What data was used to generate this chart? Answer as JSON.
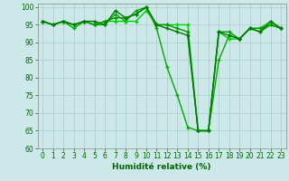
{
  "series": [
    {
      "x": [
        0,
        1,
        2,
        3,
        4,
        5,
        6,
        7,
        8,
        9,
        10,
        11,
        12,
        13,
        14,
        15,
        16,
        17,
        18,
        19,
        20,
        21,
        22,
        23
      ],
      "y": [
        96,
        95,
        96,
        94,
        96,
        95,
        95,
        98,
        96,
        99,
        100,
        94,
        83,
        75,
        66,
        65,
        65,
        85,
        92,
        91,
        94,
        93,
        95,
        94
      ],
      "color": "#00aa00"
    },
    {
      "x": [
        0,
        1,
        2,
        3,
        4,
        5,
        6,
        7,
        8,
        9,
        10,
        11,
        12,
        13,
        14,
        15,
        16,
        17,
        18,
        19,
        20,
        21,
        22,
        23
      ],
      "y": [
        96,
        95,
        96,
        95,
        96,
        95,
        96,
        96,
        96,
        96,
        99,
        95,
        95,
        95,
        95,
        65,
        65,
        93,
        91,
        91,
        94,
        94,
        96,
        94
      ],
      "color": "#00cc00"
    },
    {
      "x": [
        0,
        1,
        2,
        3,
        4,
        5,
        6,
        7,
        8,
        9,
        10,
        11,
        12,
        13,
        14,
        15,
        16,
        17,
        18,
        19,
        20,
        21,
        22,
        23
      ],
      "y": [
        96,
        95,
        96,
        95,
        96,
        95,
        96,
        97,
        97,
        98,
        100,
        95,
        95,
        94,
        93,
        65,
        65,
        93,
        93,
        91,
        94,
        94,
        95,
        94
      ],
      "color": "#009900"
    },
    {
      "x": [
        0,
        1,
        2,
        3,
        4,
        5,
        6,
        7,
        8,
        9,
        10,
        11,
        12,
        13,
        14,
        15,
        16,
        17,
        18,
        19,
        20,
        21,
        22,
        23
      ],
      "y": [
        96,
        95,
        96,
        95,
        96,
        96,
        95,
        99,
        97,
        98,
        100,
        95,
        94,
        93,
        92,
        65,
        65,
        93,
        92,
        91,
        94,
        93,
        96,
        94
      ],
      "color": "#007700"
    }
  ],
  "xlabel": "Humidité relative (%)",
  "xlim": [
    -0.5,
    23.5
  ],
  "ylim": [
    60,
    101
  ],
  "yticks": [
    60,
    65,
    70,
    75,
    80,
    85,
    90,
    95,
    100
  ],
  "xticks": [
    0,
    1,
    2,
    3,
    4,
    5,
    6,
    7,
    8,
    9,
    10,
    11,
    12,
    13,
    14,
    15,
    16,
    17,
    18,
    19,
    20,
    21,
    22,
    23
  ],
  "bg_color": "#cce8e8",
  "grid_color": "#aacccc",
  "xlabel_color": "#006600",
  "tick_color": "#006600",
  "marker_size": 3.5,
  "linewidth": 1.0,
  "xlabel_fontsize": 6.5,
  "tick_fontsize": 5.5
}
